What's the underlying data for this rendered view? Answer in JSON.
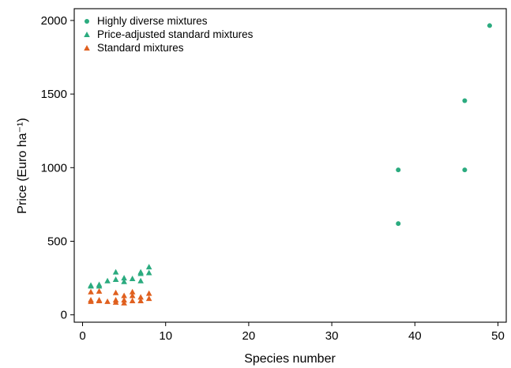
{
  "chart_data": {
    "type": "scatter",
    "xlabel": "Species number",
    "ylabel": "Price (Euro ha⁻¹)",
    "xlim": [
      -1,
      51
    ],
    "ylim": [
      -50,
      2080
    ],
    "xticks": [
      "0",
      "10",
      "20",
      "30",
      "40",
      "50"
    ],
    "yticks": [
      "0",
      "500",
      "1000",
      "1500",
      "2000"
    ],
    "grid": false,
    "legend_position": "top-left",
    "series": [
      {
        "name": "Highly diverse mixtures",
        "marker": "circle",
        "color": "#2bab7f",
        "points": [
          [
            38,
            985
          ],
          [
            38,
            620
          ],
          [
            46,
            1455
          ],
          [
            46,
            985
          ],
          [
            49,
            1965
          ]
        ]
      },
      {
        "name": "Price-adjusted standard mixtures",
        "marker": "triangle",
        "color": "#2bab7f",
        "points": [
          [
            1,
            200
          ],
          [
            1,
            195
          ],
          [
            2,
            195
          ],
          [
            2,
            205
          ],
          [
            3,
            230
          ],
          [
            4,
            290
          ],
          [
            4,
            240
          ],
          [
            5,
            250
          ],
          [
            5,
            225
          ],
          [
            6,
            245
          ],
          [
            7,
            290
          ],
          [
            7,
            230
          ],
          [
            7,
            280
          ],
          [
            8,
            325
          ],
          [
            8,
            285
          ]
        ]
      },
      {
        "name": "Standard mixtures",
        "marker": "triangle",
        "color": "#e0601f",
        "points": [
          [
            1,
            155
          ],
          [
            1,
            100
          ],
          [
            1,
            90
          ],
          [
            2,
            160
          ],
          [
            2,
            100
          ],
          [
            2,
            95
          ],
          [
            3,
            90
          ],
          [
            4,
            150
          ],
          [
            4,
            100
          ],
          [
            4,
            85
          ],
          [
            5,
            130
          ],
          [
            5,
            100
          ],
          [
            5,
            80
          ],
          [
            6,
            155
          ],
          [
            6,
            130
          ],
          [
            6,
            95
          ],
          [
            7,
            120
          ],
          [
            7,
            95
          ],
          [
            8,
            145
          ],
          [
            8,
            110
          ]
        ]
      }
    ]
  }
}
